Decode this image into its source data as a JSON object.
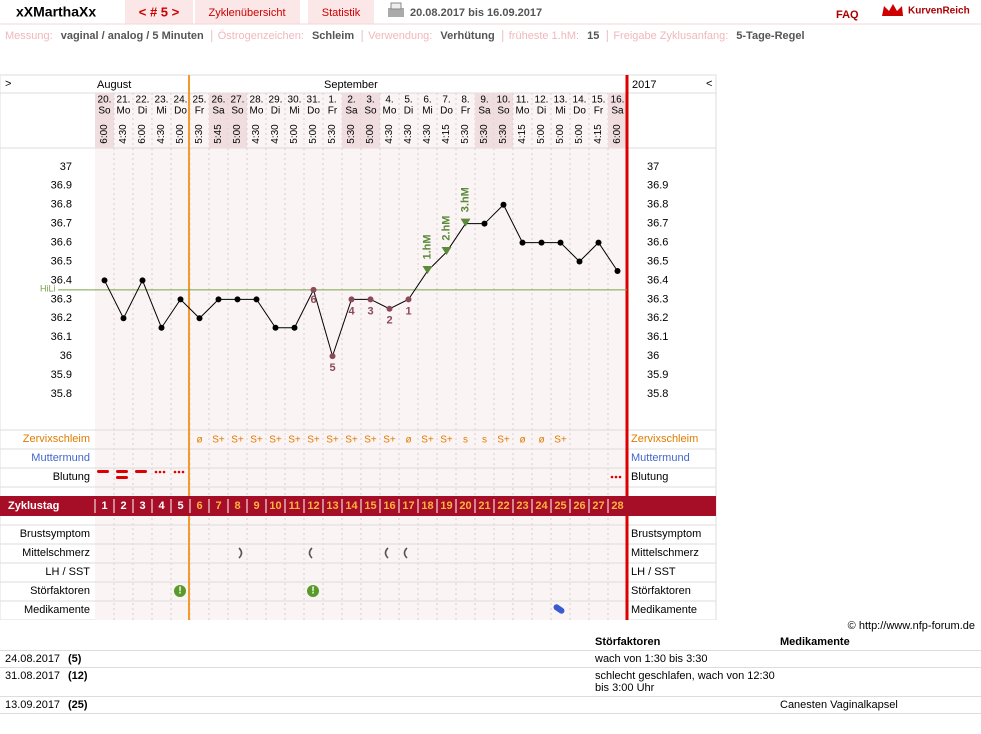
{
  "header": {
    "user": "xXMarthaXx",
    "cycle": "< # 5 >",
    "nav": [
      "Zyklenübersicht",
      "Statistik"
    ],
    "period": "20.08.2017 bis 16.09.2017",
    "faq": "FAQ",
    "brand": "KurvenReich"
  },
  "settings": [
    {
      "label": "Messung:",
      "value": "vaginal / analog / 5 Minuten"
    },
    {
      "label": "Östrogenzeichen:",
      "value": "Schleim"
    },
    {
      "label": "Verwendung:",
      "value": "Verhütung"
    },
    {
      "label": "früheste 1.hM:",
      "value": "15"
    },
    {
      "label": "Freigabe Zyklusanfang:",
      "value": "5-Tage-Regel"
    }
  ],
  "chart_data": {
    "type": "line",
    "months": [
      "August",
      "September"
    ],
    "year": "2017",
    "nav_left": ">",
    "nav_right": "<",
    "categories": [
      "20.",
      "21.",
      "22.",
      "23.",
      "24.",
      "25.",
      "26.",
      "27.",
      "28.",
      "29.",
      "30.",
      "31.",
      "1.",
      "2.",
      "3.",
      "4.",
      "5.",
      "6.",
      "7.",
      "8.",
      "9.",
      "10.",
      "11.",
      "12.",
      "13.",
      "14.",
      "15.",
      "16."
    ],
    "weekdays": [
      "So",
      "Mo",
      "Di",
      "Mi",
      "Do",
      "Fr",
      "Sa",
      "So",
      "Mo",
      "Di",
      "Mi",
      "Do",
      "Fr",
      "Sa",
      "So",
      "Mo",
      "Di",
      "Mi",
      "Do",
      "Fr",
      "Sa",
      "So",
      "Mo",
      "Di",
      "Mi",
      "Do",
      "Fr",
      "Sa"
    ],
    "times": [
      "6:00",
      "4:30",
      "6:00",
      "4:30",
      "5:00",
      "5:30",
      "5:45",
      "5:00",
      "4:30",
      "4:30",
      "5:00",
      "5:00",
      "5:30",
      "5:30",
      "5:00",
      "4:30",
      "4:30",
      "4:30",
      "4:15",
      "5:30",
      "5:30",
      "5:30",
      "4:15",
      "5:00",
      "5:00",
      "5:00",
      "4:15",
      "6:00"
    ],
    "series": [
      {
        "color": "#000000",
        "values": [
          36.4,
          36.2,
          36.4,
          36.15,
          36.3,
          36.2,
          36.3,
          36.3,
          36.3,
          36.15,
          36.15,
          36.35,
          36.0,
          36.3,
          36.3,
          36.25,
          36.3,
          36.45,
          36.55,
          36.7,
          36.7,
          36.8,
          36.6,
          36.6,
          36.6,
          36.5,
          36.6,
          36.45
        ]
      }
    ],
    "point_labels": [
      null,
      null,
      null,
      null,
      null,
      null,
      null,
      null,
      null,
      null,
      null,
      "6",
      "5",
      "4",
      "3",
      "2",
      "1",
      null,
      null,
      null,
      null,
      null,
      null,
      null,
      null,
      null,
      null,
      null
    ],
    "hm_labels": [
      null,
      null,
      null,
      null,
      null,
      null,
      null,
      null,
      null,
      null,
      null,
      null,
      null,
      null,
      null,
      null,
      null,
      "1.hM",
      "2.hM",
      "3.hM",
      null,
      null,
      null,
      null,
      null,
      null,
      null,
      null
    ],
    "ylim": [
      35.62,
      37.1
    ],
    "yticks": [
      35.8,
      35.9,
      36,
      36.1,
      36.2,
      36.3,
      36.4,
      36.5,
      36.6,
      36.7,
      36.8,
      36.9,
      37
    ],
    "hili": {
      "label": "HiLi",
      "value": 36.35
    }
  },
  "rows": {
    "zervix_label": "Zervixschleim",
    "zervix": [
      null,
      null,
      null,
      null,
      null,
      "ø",
      "S+",
      "S+",
      "S+",
      "S+",
      "S+",
      "S+",
      "S+",
      "S+",
      "S+",
      "S+",
      "ø",
      "S+",
      "S+",
      "s",
      "s",
      "S+",
      "ø",
      "ø",
      "S+",
      null,
      null,
      null
    ],
    "muttermund_label": "Muttermund",
    "blutung_label": "Blutung",
    "cycle_label": "Zyklustag",
    "cycle_days": [
      1,
      2,
      3,
      4,
      5,
      6,
      7,
      8,
      9,
      10,
      11,
      12,
      13,
      14,
      15,
      16,
      17,
      18,
      19,
      20,
      21,
      22,
      23,
      24,
      25,
      26,
      27,
      28
    ],
    "lower_labels": [
      "Brustsymptom",
      "Mittelschmerz",
      "LH / SST",
      "Störfaktoren",
      "Medikamente"
    ]
  },
  "footer": {
    "copyright": "© http://www.nfp-forum.de",
    "headers": [
      "Störfaktoren",
      "Medikamente"
    ],
    "entries": [
      {
        "date": "24.08.2017",
        "day": "(5)",
        "stoer": "wach von 1:30 bis 3:30",
        "medi": null
      },
      {
        "date": "31.08.2017",
        "day": "(12)",
        "stoer": "schlecht geschlafen, wach von 12:30 bis 3:00 Uhr",
        "medi": null
      },
      {
        "date": "13.09.2017",
        "day": "(25)",
        "stoer": null,
        "medi": "Canesten Vaginalkapsel"
      }
    ]
  }
}
